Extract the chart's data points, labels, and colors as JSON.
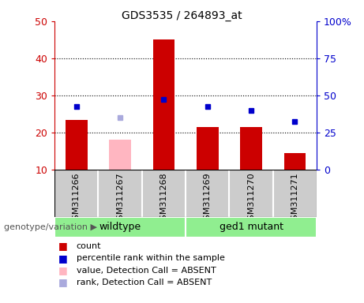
{
  "title": "GDS3535 / 264893_at",
  "samples": [
    "GSM311266",
    "GSM311267",
    "GSM311268",
    "GSM311269",
    "GSM311270",
    "GSM311271"
  ],
  "red_bars": [
    23.5,
    null,
    45.0,
    21.5,
    21.5,
    14.5
  ],
  "pink_bars": [
    null,
    18.0,
    null,
    null,
    null,
    null
  ],
  "blue_squares_left": [
    27.0,
    null,
    29.0,
    27.0,
    26.0,
    23.0
  ],
  "purple_squares_left": [
    null,
    24.0,
    null,
    null,
    null,
    null
  ],
  "ylim_left": [
    10,
    50
  ],
  "ylim_right": [
    0,
    100
  ],
  "yticks_left": [
    10,
    20,
    30,
    40,
    50
  ],
  "ytick_labels_left": [
    "10",
    "20",
    "30",
    "40",
    "50"
  ],
  "yticks_right": [
    0,
    25,
    50,
    75,
    100
  ],
  "ytick_labels_right": [
    "0",
    "25",
    "50",
    "75",
    "100%"
  ],
  "bar_width": 0.5,
  "group1_label": "wildtype",
  "group2_label": "ged1 mutant",
  "group_color": "#90ee90",
  "sample_box_color": "#cccccc",
  "red_color": "#cc0000",
  "pink_color": "#ffb6c1",
  "blue_color": "#0000cc",
  "purple_color": "#aaaadd",
  "legend_items": [
    {
      "label": "count",
      "color": "#cc0000"
    },
    {
      "label": "percentile rank within the sample",
      "color": "#0000cc"
    },
    {
      "label": "value, Detection Call = ABSENT",
      "color": "#ffb6c1"
    },
    {
      "label": "rank, Detection Call = ABSENT",
      "color": "#aaaadd"
    }
  ],
  "grid_lines": [
    20,
    30,
    40
  ],
  "title_fontsize": 10,
  "axis_fontsize": 9,
  "label_fontsize": 8,
  "legend_fontsize": 8
}
